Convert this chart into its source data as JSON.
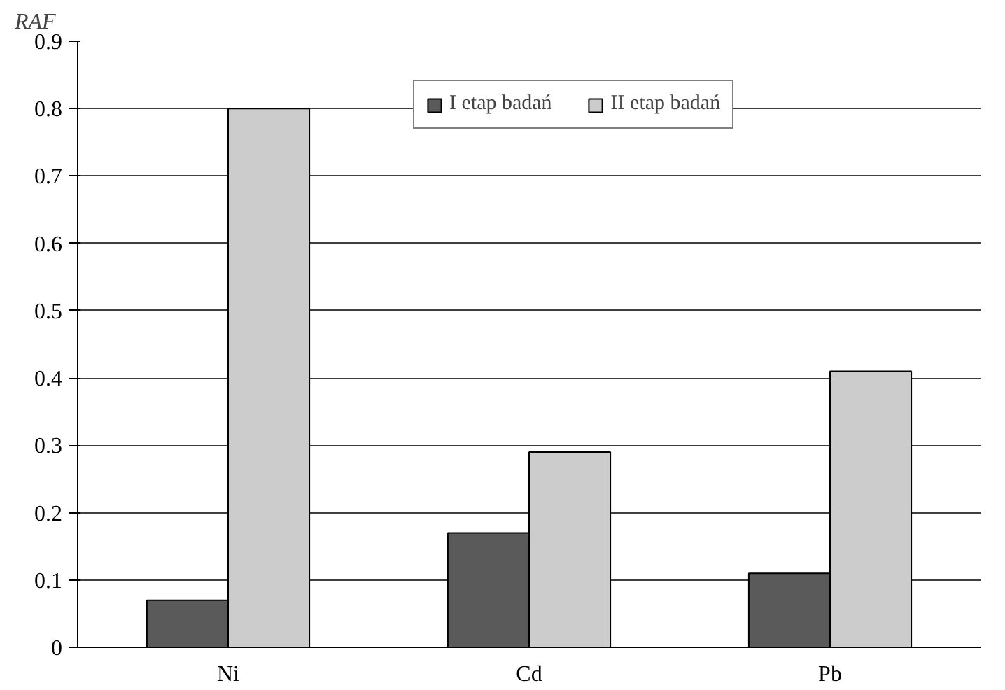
{
  "chart_data": {
    "type": "bar",
    "ylabel": "RAF",
    "categories": [
      "Ni",
      "Cd",
      "Pb"
    ],
    "series": [
      {
        "name": "I etap badań",
        "color": "#5a5a5a",
        "values": [
          0.07,
          0.17,
          0.11
        ]
      },
      {
        "name": "II etap badań",
        "color": "#cccccc",
        "values": [
          0.8,
          0.29,
          0.41
        ]
      }
    ],
    "ylim": [
      0,
      0.9
    ],
    "yticks": [
      0,
      0.1,
      0.2,
      0.3,
      0.4,
      0.5,
      0.6,
      0.7,
      0.8,
      0.9
    ],
    "grid": "y",
    "legend": "top"
  }
}
